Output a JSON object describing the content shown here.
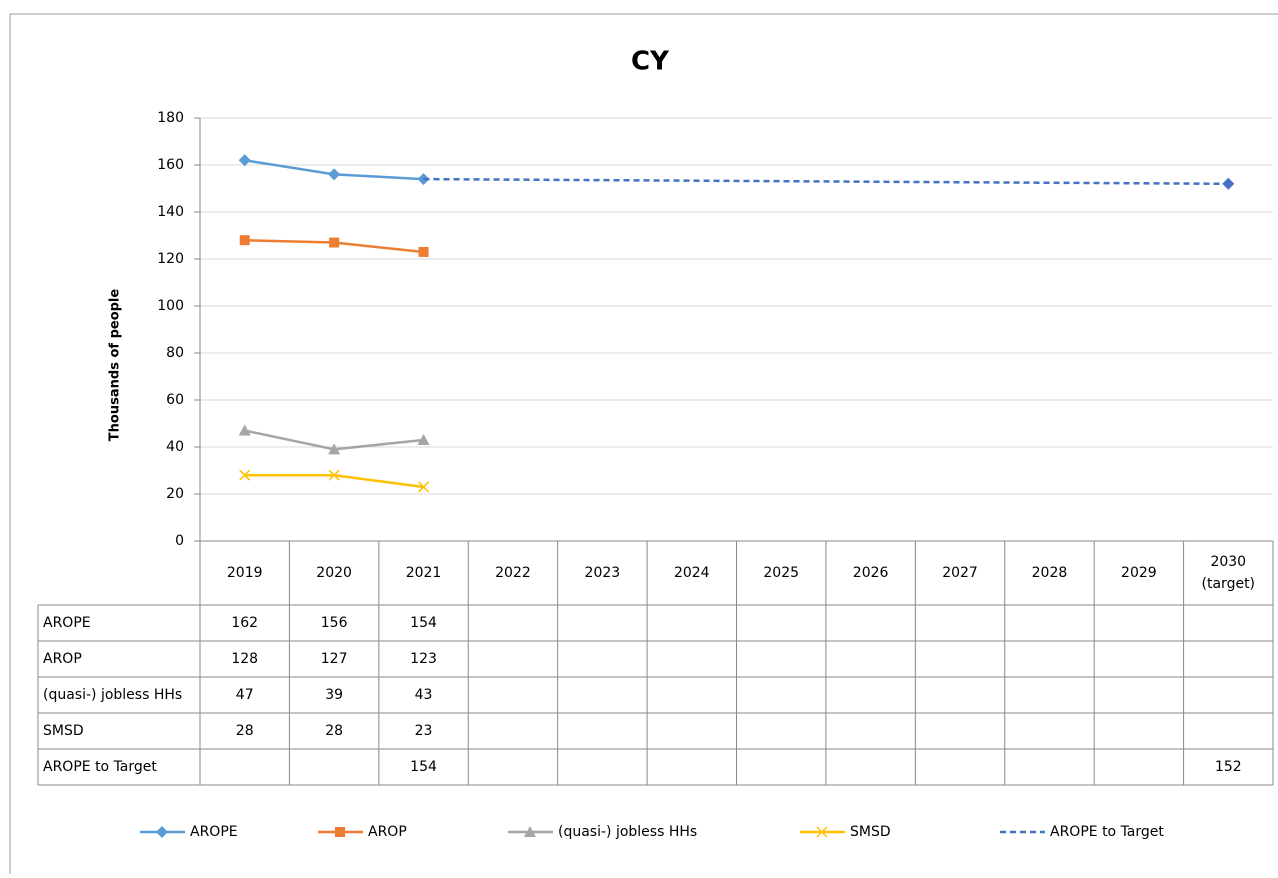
{
  "chart_data": {
    "type": "line",
    "title": "CY",
    "y_label": "Thousands of people",
    "categories": [
      "2019",
      "2020",
      "2021",
      "2022",
      "2023",
      "2024",
      "2025",
      "2026",
      "2027",
      "2028",
      "2029",
      "2030 (target)"
    ],
    "ylim": [
      0,
      180
    ],
    "yticks": [
      0,
      20,
      40,
      60,
      80,
      100,
      120,
      140,
      160,
      180
    ],
    "grid": true,
    "legend": "bottom",
    "data_table": true,
    "series": [
      {
        "name": "AROPE",
        "color": "#5b9bd5",
        "marker": "diamond",
        "dashed": false,
        "values": [
          162,
          156,
          154,
          null,
          null,
          null,
          null,
          null,
          null,
          null,
          null,
          null
        ]
      },
      {
        "name": "AROP",
        "color": "#ed7d31",
        "marker": "square",
        "dashed": false,
        "values": [
          128,
          127,
          123,
          null,
          null,
          null,
          null,
          null,
          null,
          null,
          null,
          null
        ]
      },
      {
        "name": "(quasi-) jobless HHs",
        "color": "#a5a5a5",
        "marker": "triangle",
        "dashed": false,
        "values": [
          47,
          39,
          43,
          null,
          null,
          null,
          null,
          null,
          null,
          null,
          null,
          null
        ]
      },
      {
        "name": "SMSD",
        "color": "#ffc000",
        "marker": "x",
        "dashed": false,
        "values": [
          28,
          28,
          23,
          null,
          null,
          null,
          null,
          null,
          null,
          null,
          null,
          null
        ]
      },
      {
        "name": "AROPE to Target",
        "color": "#4472c4",
        "marker": "diamond",
        "dashed": true,
        "connect_gaps": true,
        "values": [
          null,
          null,
          154,
          null,
          null,
          null,
          null,
          null,
          null,
          null,
          null,
          152
        ]
      }
    ]
  }
}
